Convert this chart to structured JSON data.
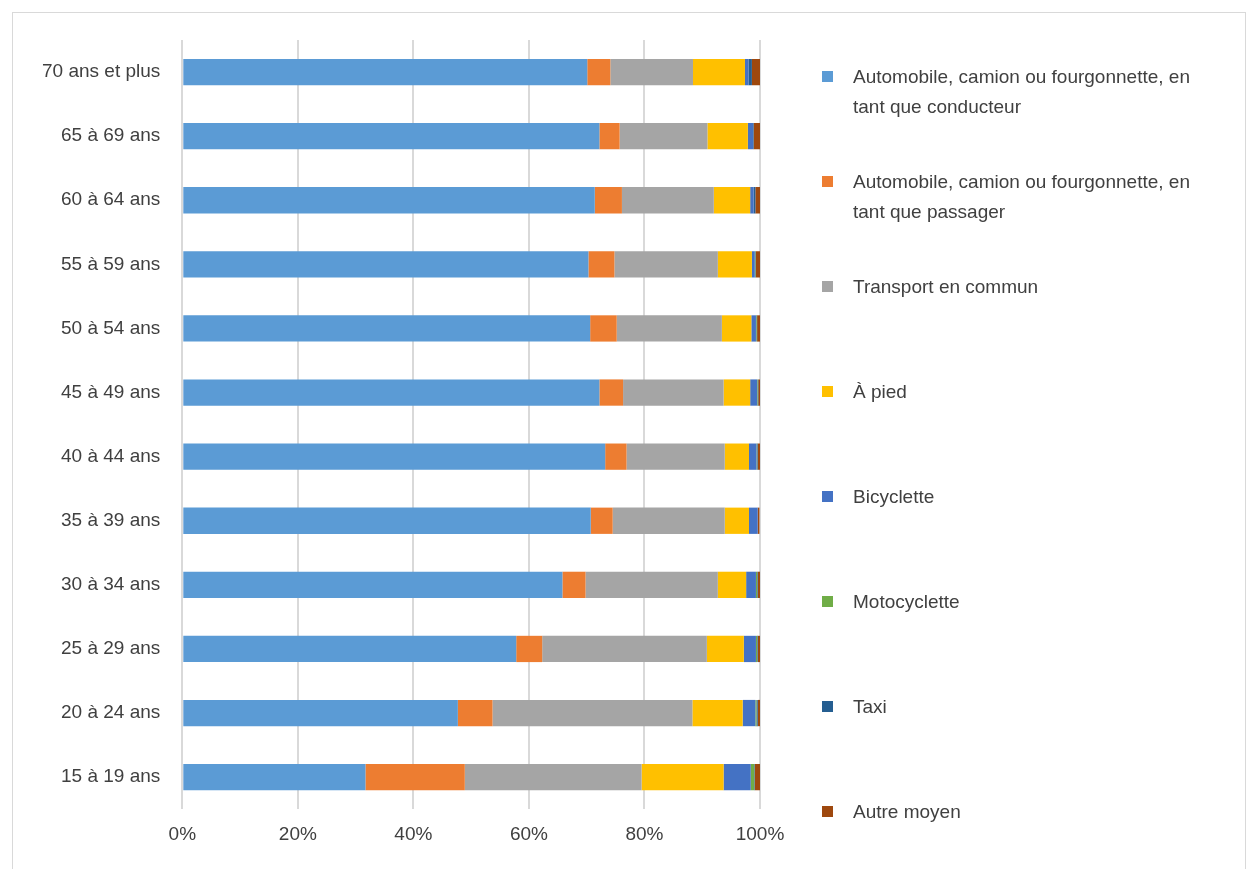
{
  "chart_data": {
    "type": "bar",
    "orientation": "horizontal",
    "stacked": true,
    "categories": [
      "70 ans et plus",
      "65 à 69 ans",
      "60 à 64 ans",
      "55 à 59 ans",
      "50 à 54 ans",
      "45 à 49 ans",
      "40 à 44 ans",
      "35 à 39 ans",
      "30 à 34 ans",
      "25 à 29 ans",
      "20 à 24 ans",
      "15 à 19 ans"
    ],
    "series": [
      {
        "name": "Automobile, camion ou fourgonnette, en tant que conducteur",
        "color": "#5b9bd5",
        "values": [
          70.1,
          72.2,
          71.4,
          70.3,
          70.6,
          72.2,
          73.2,
          70.7,
          65.8,
          57.8,
          47.7,
          31.7
        ]
      },
      {
        "name": "Automobile, camion ou fourgonnette, en tant que passager",
        "color": "#ed7d31",
        "values": [
          4.0,
          3.5,
          4.7,
          4.5,
          4.6,
          4.1,
          3.7,
          3.8,
          4.0,
          4.5,
          6.0,
          17.2
        ]
      },
      {
        "name": "Transport en commun",
        "color": "#a5a5a5",
        "values": [
          14.3,
          15.2,
          15.9,
          17.9,
          18.2,
          17.4,
          17.0,
          19.4,
          22.9,
          28.5,
          34.6,
          30.6
        ]
      },
      {
        "name": "À pied",
        "color": "#ffc000",
        "values": [
          9.0,
          7.0,
          6.3,
          5.9,
          5.1,
          4.6,
          4.2,
          4.2,
          4.9,
          6.4,
          8.7,
          14.2
        ]
      },
      {
        "name": "Bicyclette",
        "color": "#4472c4",
        "values": [
          0.6,
          0.9,
          0.6,
          0.5,
          0.8,
          1.2,
          1.3,
          1.5,
          1.7,
          2.1,
          2.2,
          4.7
        ]
      },
      {
        "name": "Motocyclette",
        "color": "#70ad47",
        "values": [
          0.0,
          0.0,
          0.0,
          0.1,
          0.1,
          0.1,
          0.1,
          0.0,
          0.2,
          0.2,
          0.2,
          0.6
        ]
      },
      {
        "name": "Taxi",
        "color": "#255e91",
        "values": [
          0.6,
          0.1,
          0.3,
          0.1,
          0.1,
          0.1,
          0.1,
          null,
          0.1,
          0.1,
          0.2,
          0.1
        ]
      },
      {
        "name": "Autre moyen",
        "color": "#9e480e",
        "values": [
          1.4,
          1.1,
          0.8,
          0.7,
          0.5,
          0.3,
          0.4,
          0.3,
          0.4,
          0.4,
          0.4,
          0.9
        ]
      }
    ],
    "xlim": [
      0,
      100
    ],
    "xticks": [
      {
        "value": 0,
        "label": "0%"
      },
      {
        "value": 20,
        "label": "20%"
      },
      {
        "value": 40,
        "label": "40%"
      },
      {
        "value": 60,
        "label": "60%"
      },
      {
        "value": 80,
        "label": "80%"
      },
      {
        "value": 100,
        "label": "100%"
      }
    ],
    "grid": "x",
    "legend": "right"
  }
}
